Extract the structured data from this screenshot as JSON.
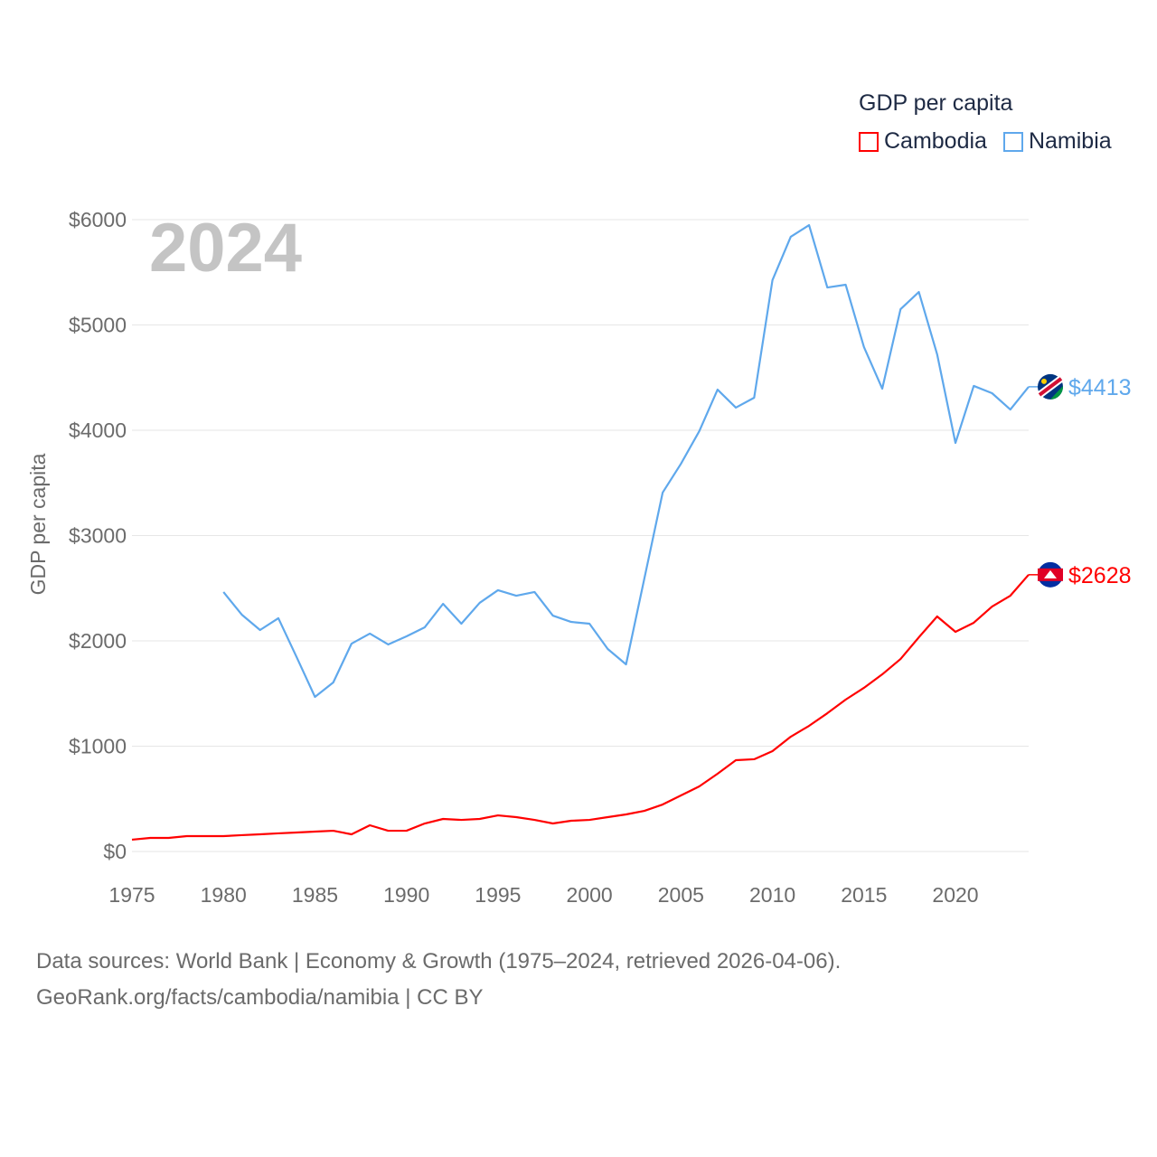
{
  "chart_data": {
    "type": "line",
    "title": "GDP per capita",
    "year_label": "2024",
    "ylabel": "GDP per capita",
    "xlabel": "",
    "xlim": [
      1975,
      2024
    ],
    "ylim": [
      0,
      6000
    ],
    "x_ticks": [
      "1975",
      "1980",
      "1985",
      "1990",
      "1995",
      "2000",
      "2005",
      "2010",
      "2015",
      "2020"
    ],
    "y_ticks": [
      "$0",
      "$1000",
      "$2000",
      "$3000",
      "$4000",
      "$5000",
      "$6000"
    ],
    "grid": true,
    "legend_position": "top-right",
    "series": [
      {
        "name": "Cambodia",
        "color": "#ff0000",
        "end_label": "$2628",
        "flag": "cambodia-flag",
        "start_year": 1975,
        "values": [
          112,
          129,
          129,
          146,
          146,
          146,
          155,
          163,
          172,
          180,
          189,
          197,
          163,
          249,
          197,
          197,
          266,
          309,
          300,
          309,
          343,
          326,
          300,
          266,
          292,
          300,
          326,
          352,
          386,
          446,
          532,
          618,
          738,
          867,
          876,
          953,
          1090,
          1193,
          1313,
          1442,
          1554,
          1682,
          1828,
          2034,
          2232,
          2086,
          2172,
          2326,
          2429,
          2628
        ]
      },
      {
        "name": "Namibia",
        "color": "#5fa8ec",
        "end_label": "$4413",
        "flag": "namibia-flag",
        "start_year": 1980,
        "values": [
          2464,
          2249,
          2103,
          2215,
          1845,
          1468,
          1605,
          1974,
          2069,
          1966,
          2043,
          2129,
          2352,
          2163,
          2361,
          2481,
          2429,
          2464,
          2240,
          2180,
          2163,
          1923,
          1777,
          2592,
          3408,
          3682,
          3991,
          4386,
          4215,
          4309,
          5425,
          5837,
          5948,
          5356,
          5382,
          4790,
          4395,
          5150,
          5313,
          4721,
          3880,
          4421,
          4352,
          4197,
          4413
        ]
      }
    ]
  },
  "legend": {
    "title": "GDP per capita",
    "items": [
      "Cambodia",
      "Namibia"
    ]
  },
  "source": {
    "line1": "Data sources: World Bank | Economy & Growth (1975–2024, retrieved 2026-04-06).",
    "line2": "GeoRank.org/facts/cambodia/namibia | CC BY"
  }
}
